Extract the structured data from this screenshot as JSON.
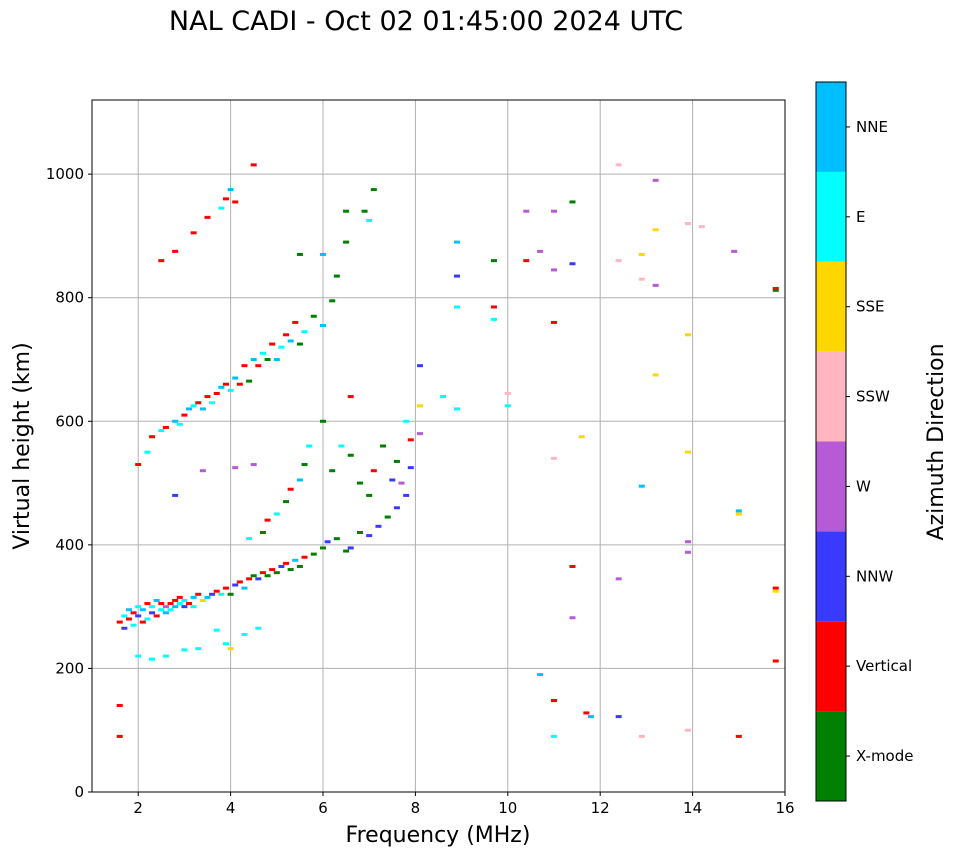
{
  "chart_data": {
    "type": "scatter",
    "title": "NAL CADI - Oct 02 01:45:00 2024 UTC",
    "xlabel": "Frequency (MHz)",
    "ylabel": "Virtual height (km)",
    "xlim": [
      1,
      16
    ],
    "ylim": [
      0,
      1120
    ],
    "xticks": [
      2,
      4,
      6,
      8,
      10,
      12,
      14,
      16
    ],
    "yticks": [
      0,
      200,
      400,
      600,
      800,
      1000
    ],
    "grid": true,
    "colorbar": {
      "label": "Azimuth Direction",
      "categories": [
        "X-mode",
        "Vertical",
        "NNW",
        "W",
        "SSW",
        "SSE",
        "E",
        "NNE"
      ],
      "colors": [
        "#008000",
        "#ff0000",
        "#3a3aff",
        "#b65ad6",
        "#ffb6c1",
        "#ffd700",
        "#00ffff",
        "#00bfff"
      ]
    },
    "points": [
      [
        1.6,
        275,
        1
      ],
      [
        1.7,
        285,
        6
      ],
      [
        1.7,
        265,
        2
      ],
      [
        1.8,
        280,
        1
      ],
      [
        1.8,
        295,
        7
      ],
      [
        1.9,
        270,
        6
      ],
      [
        1.9,
        290,
        1
      ],
      [
        2.0,
        285,
        2
      ],
      [
        2.0,
        300,
        6
      ],
      [
        2.1,
        275,
        1
      ],
      [
        2.1,
        295,
        7
      ],
      [
        2.2,
        280,
        6
      ],
      [
        2.2,
        305,
        1
      ],
      [
        2.3,
        290,
        2
      ],
      [
        2.3,
        300,
        6
      ],
      [
        2.4,
        285,
        1
      ],
      [
        2.4,
        310,
        7
      ],
      [
        2.5,
        295,
        6
      ],
      [
        2.5,
        305,
        1
      ],
      [
        2.6,
        300,
        3
      ],
      [
        2.6,
        290,
        7
      ],
      [
        2.7,
        305,
        1
      ],
      [
        2.7,
        295,
        6
      ],
      [
        2.8,
        310,
        1
      ],
      [
        2.8,
        300,
        7
      ],
      [
        2.9,
        305,
        6
      ],
      [
        2.9,
        315,
        1
      ],
      [
        3.0,
        300,
        2
      ],
      [
        3.0,
        310,
        6
      ],
      [
        3.1,
        305,
        1
      ],
      [
        3.2,
        315,
        7
      ],
      [
        3.2,
        300,
        6
      ],
      [
        3.3,
        320,
        1
      ],
      [
        3.4,
        310,
        5
      ],
      [
        3.5,
        315,
        7
      ],
      [
        3.6,
        320,
        2
      ],
      [
        3.7,
        325,
        1
      ],
      [
        3.8,
        320,
        6
      ],
      [
        3.9,
        330,
        1
      ],
      [
        4.0,
        320,
        0
      ],
      [
        4.1,
        335,
        2
      ],
      [
        4.2,
        340,
        1
      ],
      [
        4.3,
        330,
        7
      ],
      [
        4.4,
        345,
        1
      ],
      [
        4.5,
        350,
        0
      ],
      [
        4.6,
        345,
        2
      ],
      [
        4.7,
        355,
        1
      ],
      [
        4.8,
        350,
        0
      ],
      [
        4.9,
        360,
        1
      ],
      [
        5.0,
        355,
        0
      ],
      [
        5.1,
        365,
        2
      ],
      [
        5.2,
        370,
        1
      ],
      [
        5.3,
        360,
        0
      ],
      [
        5.4,
        375,
        7
      ],
      [
        5.5,
        365,
        0
      ],
      [
        5.6,
        380,
        1
      ],
      [
        5.8,
        385,
        0
      ],
      [
        6.0,
        395,
        0
      ],
      [
        6.1,
        405,
        2
      ],
      [
        6.3,
        410,
        0
      ],
      [
        6.5,
        390,
        0
      ],
      [
        6.6,
        395,
        2
      ],
      [
        6.8,
        420,
        0
      ],
      [
        7.0,
        415,
        2
      ],
      [
        7.2,
        430,
        2
      ],
      [
        7.4,
        445,
        0
      ],
      [
        7.6,
        460,
        2
      ],
      [
        7.8,
        480,
        2
      ],
      [
        7.9,
        525,
        2
      ],
      [
        7.7,
        500,
        3
      ],
      [
        1.6,
        140,
        1
      ],
      [
        1.6,
        90,
        1
      ],
      [
        2.0,
        220,
        6
      ],
      [
        2.3,
        215,
        6
      ],
      [
        2.6,
        220,
        6
      ],
      [
        3.0,
        230,
        6
      ],
      [
        3.3,
        232,
        6
      ],
      [
        3.9,
        240,
        6
      ],
      [
        4.0,
        232,
        5
      ],
      [
        4.3,
        255,
        6
      ],
      [
        4.6,
        265,
        6
      ],
      [
        3.7,
        262,
        6
      ],
      [
        4.4,
        410,
        6
      ],
      [
        4.7,
        420,
        0
      ],
      [
        4.8,
        440,
        1
      ],
      [
        5.0,
        450,
        6
      ],
      [
        5.2,
        470,
        0
      ],
      [
        5.3,
        490,
        1
      ],
      [
        5.5,
        505,
        7
      ],
      [
        5.6,
        530,
        0
      ],
      [
        5.7,
        560,
        6
      ],
      [
        6.0,
        600,
        0
      ],
      [
        6.2,
        520,
        0
      ],
      [
        6.4,
        560,
        6
      ],
      [
        6.6,
        545,
        0
      ],
      [
        6.6,
        640,
        1
      ],
      [
        6.8,
        500,
        0
      ],
      [
        7.0,
        480,
        0
      ],
      [
        7.1,
        520,
        1
      ],
      [
        7.3,
        560,
        0
      ],
      [
        7.5,
        505,
        2
      ],
      [
        7.6,
        535,
        0
      ],
      [
        7.9,
        570,
        1
      ],
      [
        7.8,
        600,
        6
      ],
      [
        2.0,
        530,
        1
      ],
      [
        2.2,
        550,
        6
      ],
      [
        2.3,
        575,
        1
      ],
      [
        2.5,
        585,
        6
      ],
      [
        2.6,
        590,
        1
      ],
      [
        2.8,
        600,
        7
      ],
      [
        2.9,
        595,
        6
      ],
      [
        3.0,
        610,
        1
      ],
      [
        3.1,
        620,
        7
      ],
      [
        3.2,
        625,
        6
      ],
      [
        3.3,
        630,
        1
      ],
      [
        3.4,
        620,
        7
      ],
      [
        3.5,
        640,
        1
      ],
      [
        3.6,
        630,
        6
      ],
      [
        3.7,
        645,
        1
      ],
      [
        3.8,
        655,
        7
      ],
      [
        3.9,
        660,
        1
      ],
      [
        4.0,
        650,
        6
      ],
      [
        4.1,
        670,
        7
      ],
      [
        4.2,
        660,
        1
      ],
      [
        4.3,
        690,
        1
      ],
      [
        4.4,
        665,
        0
      ],
      [
        4.5,
        700,
        7
      ],
      [
        4.6,
        690,
        1
      ],
      [
        4.7,
        710,
        6
      ],
      [
        4.8,
        700,
        0
      ],
      [
        4.9,
        725,
        1
      ],
      [
        5.0,
        700,
        7
      ],
      [
        5.1,
        720,
        6
      ],
      [
        5.2,
        740,
        1
      ],
      [
        5.3,
        730,
        7
      ],
      [
        5.4,
        760,
        1
      ],
      [
        5.5,
        725,
        0
      ],
      [
        5.6,
        745,
        6
      ],
      [
        5.8,
        770,
        0
      ],
      [
        6.0,
        755,
        7
      ],
      [
        6.2,
        795,
        0
      ],
      [
        3.4,
        520,
        3
      ],
      [
        4.1,
        525,
        3
      ],
      [
        4.5,
        530,
        3
      ],
      [
        2.8,
        480,
        2
      ],
      [
        2.5,
        860,
        1
      ],
      [
        2.8,
        875,
        1
      ],
      [
        3.2,
        905,
        1
      ],
      [
        3.5,
        930,
        1
      ],
      [
        3.8,
        945,
        6
      ],
      [
        3.9,
        960,
        1
      ],
      [
        4.0,
        975,
        7
      ],
      [
        4.1,
        955,
        1
      ],
      [
        4.5,
        1015,
        1
      ],
      [
        5.5,
        870,
        0
      ],
      [
        6.0,
        870,
        7
      ],
      [
        6.5,
        890,
        0
      ],
      [
        6.3,
        835,
        0
      ],
      [
        6.5,
        940,
        0
      ],
      [
        6.9,
        940,
        0
      ],
      [
        7.1,
        975,
        0
      ],
      [
        7.0,
        925,
        6
      ],
      [
        8.1,
        690,
        2
      ],
      [
        8.1,
        580,
        3
      ],
      [
        8.1,
        625,
        5
      ],
      [
        8.6,
        640,
        6
      ],
      [
        8.9,
        620,
        6
      ],
      [
        8.9,
        785,
        6
      ],
      [
        8.9,
        835,
        2
      ],
      [
        8.9,
        890,
        7
      ],
      [
        9.7,
        860,
        0
      ],
      [
        9.7,
        785,
        1
      ],
      [
        9.7,
        765,
        6
      ],
      [
        10.0,
        625,
        6
      ],
      [
        10.0,
        645,
        4
      ],
      [
        10.4,
        860,
        1
      ],
      [
        10.4,
        940,
        3
      ],
      [
        10.7,
        875,
        3
      ],
      [
        11.0,
        940,
        3
      ],
      [
        11.0,
        845,
        3
      ],
      [
        11.0,
        760,
        1
      ],
      [
        11.0,
        540,
        4
      ],
      [
        11.4,
        955,
        0
      ],
      [
        11.4,
        855,
        2
      ],
      [
        11.6,
        575,
        5
      ],
      [
        12.4,
        1015,
        4
      ],
      [
        12.4,
        860,
        4
      ],
      [
        12.9,
        870,
        5
      ],
      [
        12.9,
        830,
        4
      ],
      [
        13.2,
        990,
        3
      ],
      [
        13.2,
        910,
        5
      ],
      [
        13.2,
        820,
        3
      ],
      [
        13.2,
        675,
        5
      ],
      [
        12.9,
        495,
        7
      ],
      [
        13.9,
        920,
        4
      ],
      [
        13.9,
        740,
        5
      ],
      [
        13.9,
        550,
        5
      ],
      [
        13.9,
        405,
        3
      ],
      [
        13.9,
        388,
        3
      ],
      [
        14.2,
        915,
        4
      ],
      [
        14.9,
        875,
        3
      ],
      [
        15.0,
        455,
        7
      ],
      [
        15.0,
        450,
        5
      ],
      [
        15.8,
        815,
        1
      ],
      [
        15.8,
        812,
        0
      ],
      [
        15.8,
        330,
        1
      ],
      [
        15.8,
        325,
        5
      ],
      [
        15.8,
        212,
        1
      ],
      [
        11.4,
        365,
        1
      ],
      [
        11.4,
        282,
        3
      ],
      [
        12.4,
        345,
        3
      ],
      [
        10.7,
        190,
        7
      ],
      [
        11.0,
        148,
        1
      ],
      [
        11.0,
        90,
        6
      ],
      [
        11.7,
        128,
        1
      ],
      [
        11.8,
        122,
        7
      ],
      [
        12.4,
        122,
        2
      ],
      [
        12.9,
        90,
        4
      ],
      [
        13.9,
        100,
        4
      ],
      [
        15.0,
        90,
        1
      ]
    ]
  }
}
